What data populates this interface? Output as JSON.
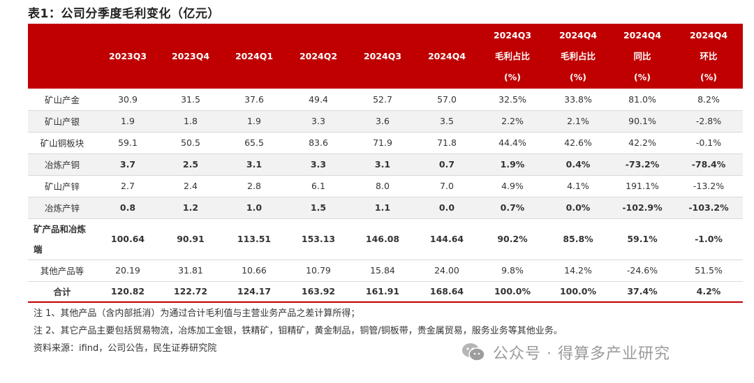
{
  "title": "表1：公司分季度毛利变化（亿元）",
  "table": {
    "headers": [
      [
        "",
        "",
        ""
      ],
      [
        "",
        "2023Q3",
        ""
      ],
      [
        "",
        "2023Q4",
        ""
      ],
      [
        "",
        "2024Q1",
        ""
      ],
      [
        "",
        "2024Q2",
        ""
      ],
      [
        "",
        "2024Q3",
        ""
      ],
      [
        "",
        "2024Q4",
        ""
      ],
      [
        "2024Q3",
        "毛利占比",
        "(%)"
      ],
      [
        "2024Q4",
        "毛利占比",
        "(%)"
      ],
      [
        "2024Q4",
        "同比",
        "(%)"
      ],
      [
        "2024Q4",
        "环比",
        "(%)"
      ]
    ],
    "rows": [
      {
        "label": "矿山产金",
        "values": [
          "30.9",
          "31.5",
          "37.6",
          "49.4",
          "52.7",
          "57.0",
          "32.5%",
          "33.8%",
          "81.0%",
          "8.2%"
        ]
      },
      {
        "label": "矿山产银",
        "values": [
          "1.9",
          "1.8",
          "1.9",
          "3.3",
          "3.6",
          "3.5",
          "2.2%",
          "2.1%",
          "90.1%",
          "-2.8%"
        ]
      },
      {
        "label": "矿山铜板块",
        "values": [
          "59.1",
          "50.5",
          "65.5",
          "83.6",
          "71.9",
          "71.8",
          "44.4%",
          "42.6%",
          "42.2%",
          "-0.1%"
        ]
      },
      {
        "label": "冶炼产铜",
        "values": [
          "3.7",
          "2.5",
          "3.1",
          "3.3",
          "3.1",
          "0.7",
          "1.9%",
          "0.4%",
          "-73.2%",
          "-78.4%"
        ]
      },
      {
        "label": "矿山产锌",
        "values": [
          "2.7",
          "2.4",
          "2.8",
          "6.1",
          "8.0",
          "7.0",
          "4.9%",
          "4.1%",
          "191.1%",
          "-13.2%"
        ]
      },
      {
        "label": "冶炼产锌",
        "values": [
          "0.8",
          "1.2",
          "1.0",
          "1.5",
          "1.1",
          "0.0",
          "0.7%",
          "0.0%",
          "-102.9%",
          "-103.2%"
        ]
      },
      {
        "label": "矿产品和冶炼端",
        "values": [
          "100.64",
          "90.91",
          "113.51",
          "153.13",
          "146.08",
          "144.64",
          "90.2%",
          "85.8%",
          "59.1%",
          "-1.0%"
        ]
      },
      {
        "label": "其他产品等",
        "values": [
          "20.19",
          "31.81",
          "10.66",
          "10.79",
          "15.84",
          "24.00",
          "9.8%",
          "14.2%",
          "-24.6%",
          "51.5%"
        ]
      },
      {
        "label": "合计",
        "values": [
          "120.82",
          "122.72",
          "124.17",
          "163.92",
          "161.91",
          "168.64",
          "100.0%",
          "100.0%",
          "37.4%",
          "4.2%"
        ]
      }
    ]
  },
  "notes": [
    "注 1、其他产品（含内部抵消）为通过合计毛利值与主营业务产品之差计算所得；",
    "注 2、其它产品主要包括贸易物流，冶炼加工金银，铁精矿，钼精矿，黄金制品，铜管/铜板带，贵金属贸易，服务业务等其他业务。",
    "资料来源：ifind，公司公告，民生证券研究院"
  ],
  "watermark": {
    "text": "公众号 · 得算多产业研究",
    "icon": "wechat-icon"
  }
}
